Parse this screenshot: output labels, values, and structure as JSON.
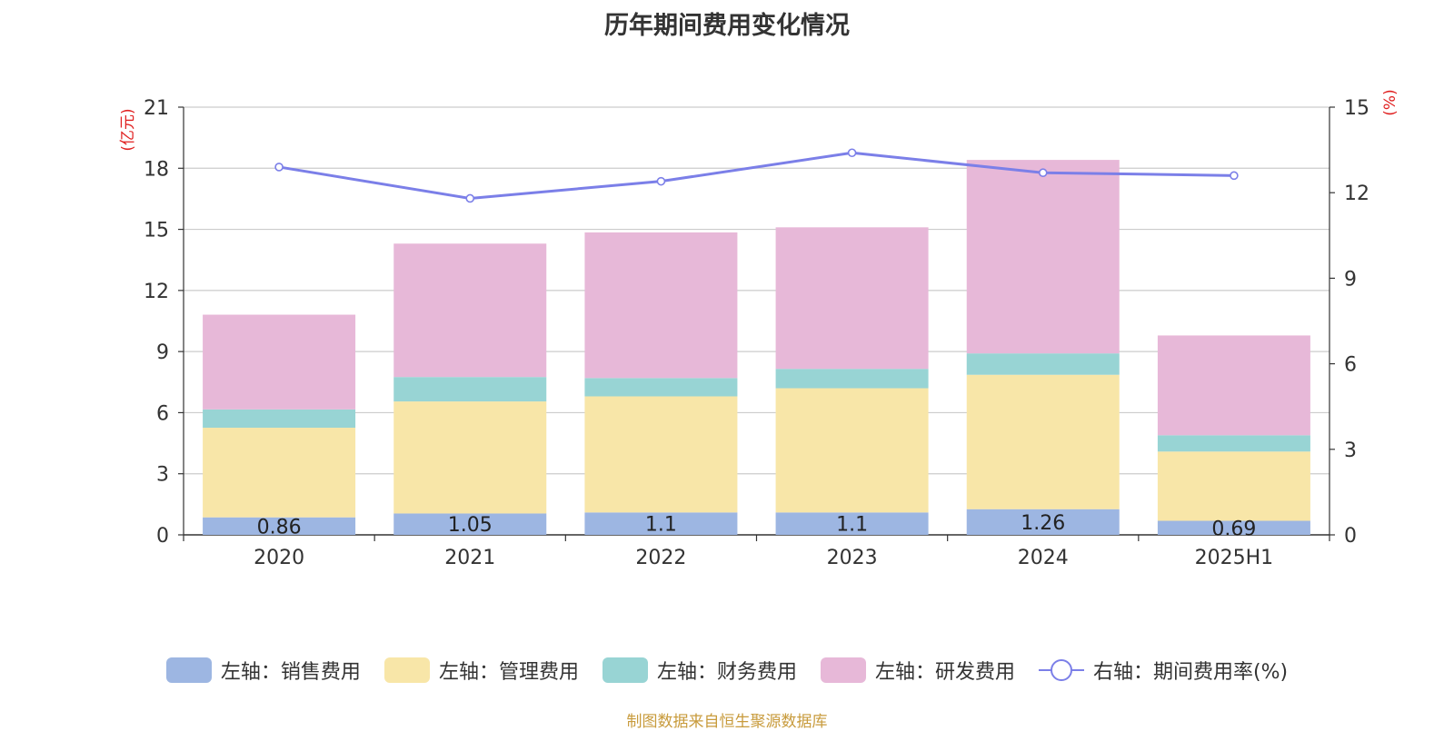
{
  "chart_data": {
    "type": "bar",
    "title": "历年期间费用变化情况",
    "categories": [
      "2020",
      "2021",
      "2022",
      "2023",
      "2024",
      "2025H1"
    ],
    "y_left": {
      "unit_label": "(亿元)",
      "ylim": [
        0,
        21
      ],
      "ticks": [
        0,
        3,
        6,
        9,
        12,
        15,
        18,
        21
      ]
    },
    "y_right": {
      "unit_label": "(%)",
      "ylim": [
        0,
        15
      ],
      "ticks": [
        0,
        3,
        6,
        9,
        12,
        15
      ]
    },
    "grid": true,
    "legend_position": "bottom",
    "series": [
      {
        "name": "左轴：销售费用",
        "type": "bar",
        "axis": "left",
        "color": "#9db6e2",
        "values": [
          0.86,
          1.05,
          1.1,
          1.1,
          1.26,
          0.69
        ],
        "labels": [
          "0.86",
          "1.05",
          "1.1",
          "1.1",
          "1.26",
          "0.69"
        ]
      },
      {
        "name": "左轴：管理费用",
        "type": "bar",
        "axis": "left",
        "color": "#f8e6a8",
        "values": [
          4.4,
          5.5,
          5.7,
          6.1,
          6.6,
          3.4
        ]
      },
      {
        "name": "左轴：财务费用",
        "type": "bar",
        "axis": "left",
        "color": "#98d4d4",
        "values": [
          0.9,
          1.2,
          0.9,
          0.95,
          1.05,
          0.8
        ]
      },
      {
        "name": "左轴：研发费用",
        "type": "bar",
        "axis": "left",
        "color": "#e7b8d8",
        "values": [
          4.65,
          6.55,
          7.15,
          6.95,
          9.5,
          4.9
        ]
      },
      {
        "name": "右轴：期间费用率(%)",
        "type": "line",
        "axis": "right",
        "color": "#7b7fe8",
        "values": [
          12.9,
          11.8,
          12.4,
          13.4,
          12.7,
          12.6
        ]
      }
    ]
  },
  "footer": "制图数据来自恒生聚源数据库"
}
